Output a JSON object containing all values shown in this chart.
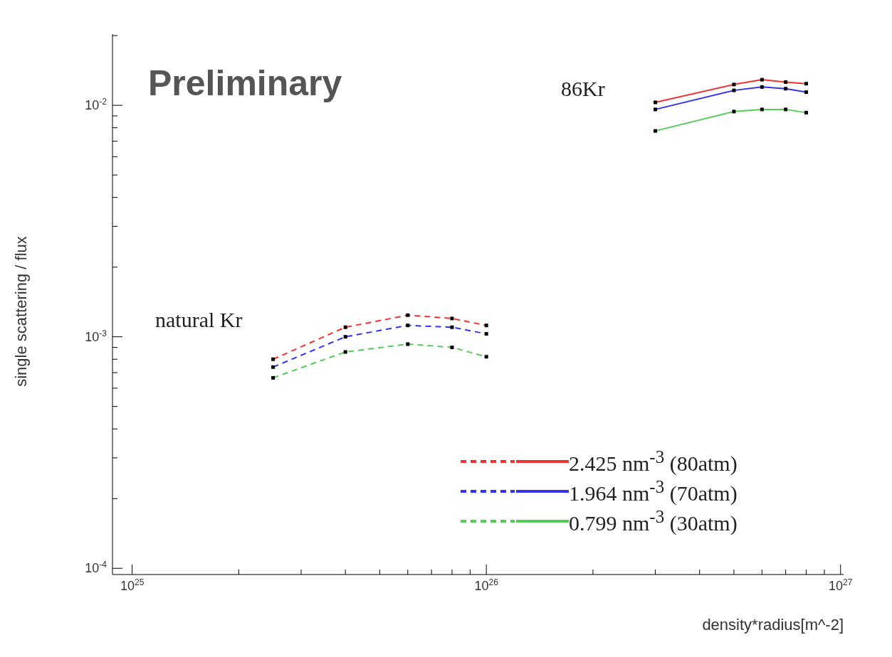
{
  "chart_data": {
    "type": "line",
    "xlabel": "density*radius[m^-2]",
    "ylabel": "single scattering / flux",
    "log": "xy",
    "grid": false,
    "legend": "bottom right",
    "marker": "square",
    "xlim": [
      8.8e+24,
      1.02e+27
    ],
    "ylim": [
      9.4e-05,
      0.0203
    ],
    "xticks": [
      {
        "value": 1e+25,
        "label": "10$^{25}$"
      },
      {
        "value": 2e+25,
        "label": null
      },
      {
        "value": 3e+25,
        "label": null
      },
      {
        "value": 4e+25,
        "label": null
      },
      {
        "value": 5e+25,
        "label": null
      },
      {
        "value": 6e+25,
        "label": null
      },
      {
        "value": 7e+25,
        "label": null
      },
      {
        "value": 8e+25,
        "label": null
      },
      {
        "value": 9e+25,
        "label": null
      },
      {
        "value": 1e+26,
        "label": "10$^{26}$"
      },
      {
        "value": 2e+26,
        "label": null
      },
      {
        "value": 3e+26,
        "label": null
      },
      {
        "value": 4e+26,
        "label": null
      },
      {
        "value": 5e+26,
        "label": null
      },
      {
        "value": 6e+26,
        "label": null
      },
      {
        "value": 7e+26,
        "label": null
      },
      {
        "value": 8e+26,
        "label": null
      },
      {
        "value": 9e+26,
        "label": null
      },
      {
        "value": 1e+27,
        "label": "10$^{27}$"
      }
    ],
    "yticks": [
      {
        "value": 0.0001,
        "label": "10$^{-4}$"
      },
      {
        "value": 0.0002,
        "label": null
      },
      {
        "value": 0.0003,
        "label": null
      },
      {
        "value": 0.0004,
        "label": null
      },
      {
        "value": 0.0005,
        "label": null
      },
      {
        "value": 0.0006,
        "label": null
      },
      {
        "value": 0.0007,
        "label": null
      },
      {
        "value": 0.0008,
        "label": null
      },
      {
        "value": 0.0009,
        "label": null
      },
      {
        "value": 0.001,
        "label": "10$^{-3}$"
      },
      {
        "value": 0.002,
        "label": null
      },
      {
        "value": 0.003,
        "label": null
      },
      {
        "value": 0.004,
        "label": null
      },
      {
        "value": 0.005,
        "label": null
      },
      {
        "value": 0.006,
        "label": null
      },
      {
        "value": 0.007,
        "label": null
      },
      {
        "value": 0.008,
        "label": null
      },
      {
        "value": 0.009,
        "label": null
      },
      {
        "value": 0.01,
        "label": "10$^{-2}$"
      },
      {
        "value": 0.02,
        "label": null
      }
    ],
    "annotations": [
      "Preliminary",
      "86Kr",
      "natural Kr"
    ],
    "series": [
      {
        "color": "#ee3333",
        "line_style": "dashed",
        "x": [
          2.5e+25,
          4e+25,
          6e+25,
          8e+25,
          1e+26
        ],
        "values": [
          0.0008,
          0.0011,
          0.00124,
          0.0012,
          0.00112
        ]
      },
      {
        "color": "#3333ee",
        "line_style": "dashed",
        "x": [
          2.5e+25,
          4e+25,
          6e+25,
          8e+25,
          1e+26
        ],
        "values": [
          0.00074,
          0.001,
          0.00112,
          0.0011,
          0.00103
        ]
      },
      {
        "color": "#55cc55",
        "line_style": "dashed",
        "x": [
          2.5e+25,
          4e+25,
          6e+25,
          8e+25,
          1e+26
        ],
        "values": [
          0.000665,
          0.00086,
          0.00093,
          0.0009,
          0.00082
        ]
      },
      {
        "name": "2.425 nm$^{-3}$ (80atm)",
        "color": "#ee3333",
        "line_style": "solid",
        "x": [
          3e+26,
          5e+26,
          6e+26,
          7e+26,
          8e+26
        ],
        "values": [
          0.0103,
          0.0123,
          0.0129,
          0.0126,
          0.0124
        ]
      },
      {
        "name": "1.964 nm$^{-3}$ (70atm)",
        "color": "#3333ee",
        "line_style": "solid",
        "x": [
          3e+26,
          5e+26,
          6e+26,
          7e+26,
          8e+26
        ],
        "values": [
          0.0096,
          0.0116,
          0.012,
          0.0118,
          0.0114
        ]
      },
      {
        "name": "0.799 nm$^{-3}$ (30atm)",
        "color": "#55cc55",
        "line_style": "solid",
        "x": [
          3e+26,
          5e+26,
          6e+26,
          7e+26,
          8e+26
        ],
        "values": [
          0.00775,
          0.0094,
          0.0096,
          0.0096,
          0.0093
        ]
      }
    ]
  }
}
